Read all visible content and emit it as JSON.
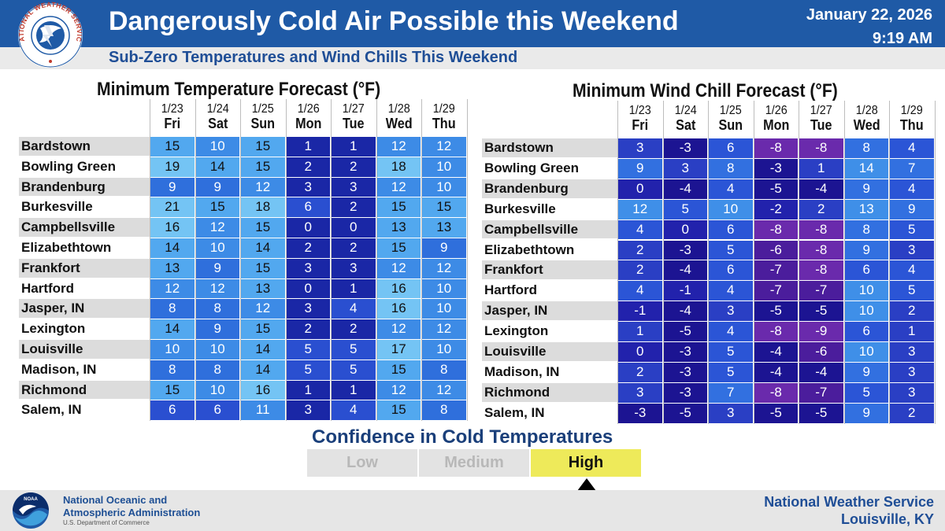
{
  "header": {
    "title": "Dangerously Cold Air Possible this Weekend",
    "date": "January 22, 2026",
    "time": "9:19 AM",
    "subtitle": "Sub-Zero Temperatures and Wind Chills This Weekend",
    "logo_text": "NATIONAL WEATHER SERVICE"
  },
  "days": [
    {
      "date": "1/23",
      "day": "Fri"
    },
    {
      "date": "1/24",
      "day": "Sat"
    },
    {
      "date": "1/25",
      "day": "Sun"
    },
    {
      "date": "1/26",
      "day": "Mon"
    },
    {
      "date": "1/27",
      "day": "Tue"
    },
    {
      "date": "1/28",
      "day": "Wed"
    },
    {
      "date": "1/29",
      "day": "Thu"
    }
  ],
  "temperature_table": {
    "title": "Minimum Temperature Forecast (°F)",
    "rows": [
      {
        "city": "Bardstown",
        "values": [
          15,
          10,
          15,
          1,
          1,
          12,
          12
        ]
      },
      {
        "city": "Bowling Green",
        "values": [
          19,
          14,
          15,
          2,
          2,
          18,
          10
        ]
      },
      {
        "city": "Brandenburg",
        "values": [
          9,
          9,
          12,
          3,
          3,
          12,
          10
        ]
      },
      {
        "city": "Burkesville",
        "values": [
          21,
          15,
          18,
          6,
          2,
          15,
          15
        ]
      },
      {
        "city": "Campbellsville",
        "values": [
          16,
          12,
          15,
          0,
          0,
          13,
          13
        ]
      },
      {
        "city": "Elizabethtown",
        "values": [
          14,
          10,
          14,
          2,
          2,
          15,
          9
        ]
      },
      {
        "city": "Frankfort",
        "values": [
          13,
          9,
          15,
          3,
          3,
          12,
          12
        ]
      },
      {
        "city": "Hartford",
        "values": [
          12,
          12,
          13,
          0,
          1,
          16,
          10
        ]
      },
      {
        "city": "Jasper, IN",
        "values": [
          8,
          8,
          12,
          3,
          4,
          16,
          10
        ]
      },
      {
        "city": "Lexington",
        "values": [
          14,
          9,
          15,
          2,
          2,
          12,
          12
        ]
      },
      {
        "city": "Louisville",
        "values": [
          10,
          10,
          14,
          5,
          5,
          17,
          10
        ]
      },
      {
        "city": "Madison, IN",
        "values": [
          8,
          8,
          14,
          5,
          5,
          15,
          8
        ]
      },
      {
        "city": "Richmond",
        "values": [
          15,
          10,
          16,
          1,
          1,
          12,
          12
        ]
      },
      {
        "city": "Salem, IN",
        "values": [
          6,
          6,
          11,
          3,
          4,
          15,
          8
        ]
      }
    ]
  },
  "windchill_table": {
    "title": "Minimum Wind Chill Forecast (°F)",
    "rows": [
      {
        "city": "Bardstown",
        "values": [
          3,
          -3,
          6,
          -8,
          -8,
          8,
          4
        ]
      },
      {
        "city": "Bowling Green",
        "values": [
          9,
          3,
          8,
          -3,
          1,
          14,
          7
        ]
      },
      {
        "city": "Brandenburg",
        "values": [
          0,
          -4,
          4,
          -5,
          -4,
          9,
          4
        ]
      },
      {
        "city": "Burkesville",
        "values": [
          12,
          5,
          10,
          -2,
          2,
          13,
          9
        ]
      },
      {
        "city": "Campbellsville",
        "values": [
          4,
          0,
          6,
          -8,
          -8,
          8,
          5
        ]
      },
      {
        "city": "Elizabethtown",
        "values": [
          2,
          -3,
          5,
          -6,
          -8,
          9,
          3
        ]
      },
      {
        "city": "Frankfort",
        "values": [
          2,
          -4,
          6,
          -7,
          -8,
          6,
          4
        ]
      },
      {
        "city": "Hartford",
        "values": [
          4,
          -1,
          4,
          -7,
          -7,
          10,
          5
        ]
      },
      {
        "city": "Jasper, IN",
        "values": [
          -1,
          -4,
          3,
          -5,
          -5,
          10,
          2
        ]
      },
      {
        "city": "Lexington",
        "values": [
          1,
          -5,
          4,
          -8,
          -9,
          6,
          1
        ]
      },
      {
        "city": "Louisville",
        "values": [
          0,
          -3,
          5,
          -4,
          -6,
          10,
          3
        ]
      },
      {
        "city": "Madison, IN",
        "values": [
          2,
          -3,
          5,
          -4,
          -4,
          9,
          3
        ]
      },
      {
        "city": "Richmond",
        "values": [
          3,
          -3,
          7,
          -8,
          -7,
          5,
          3
        ]
      },
      {
        "city": "Salem, IN",
        "values": [
          -3,
          -5,
          3,
          -5,
          -5,
          9,
          2
        ]
      }
    ]
  },
  "confidence": {
    "title": "Confidence in Cold Temperatures",
    "levels": [
      "Low",
      "Medium",
      "High"
    ],
    "selected": "High"
  },
  "footer": {
    "noaa_line1": "National Oceanic and",
    "noaa_line2": "Atmospheric Administration",
    "noaa_dept": "U.S. Department of Commerce",
    "noaa_logo_text": "NOAA",
    "office_line1": "National Weather Service",
    "office_line2": "Louisville, KY"
  },
  "colors": {
    "header_blue": "#1f5aa6",
    "subtitle_blue": "#1f4e96",
    "confidence_high": "#eeea5a"
  }
}
